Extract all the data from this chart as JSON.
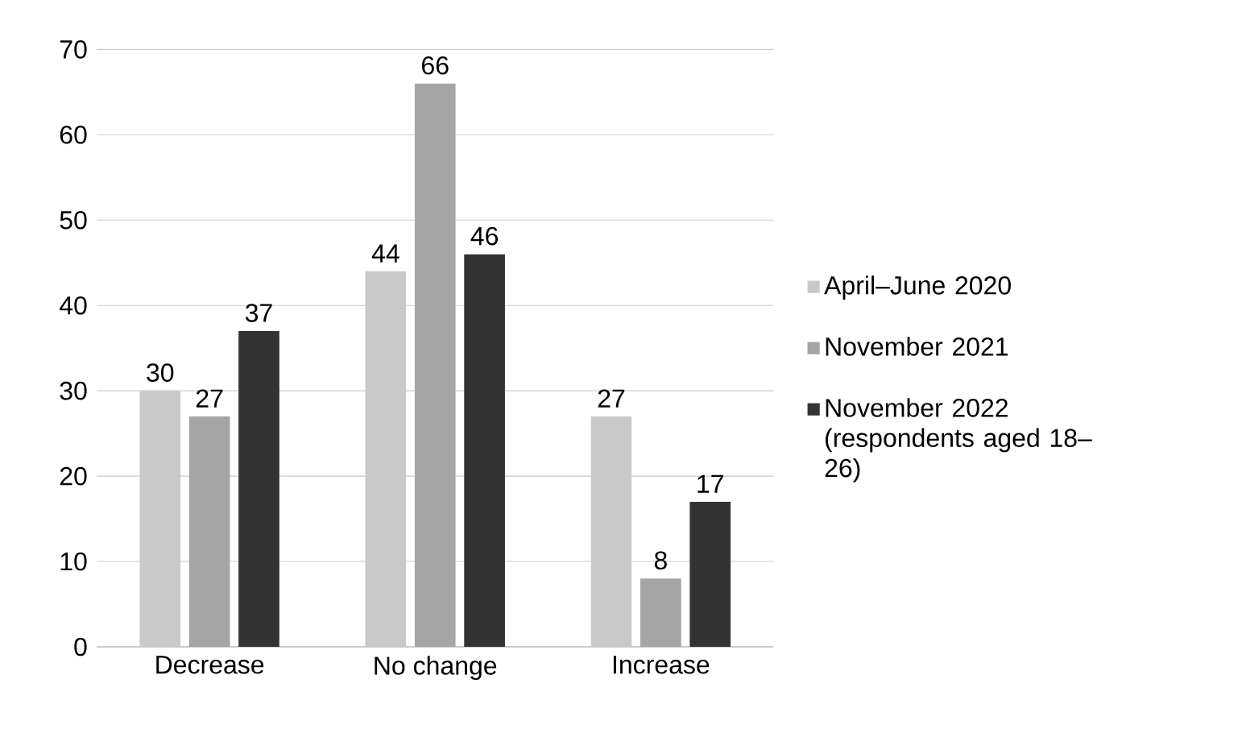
{
  "chart_data": {
    "type": "bar",
    "categories": [
      "Decrease",
      "No change",
      "Increase"
    ],
    "series": [
      {
        "name": "April–June 2020",
        "color": "#c9c9c9",
        "values": [
          30,
          44,
          27
        ]
      },
      {
        "name": "November 2021",
        "color": "#a5a5a5",
        "values": [
          27,
          66,
          8
        ]
      },
      {
        "name": "November 2022 (respondents aged 18–26)",
        "color": "#333333",
        "values": [
          37,
          46,
          17
        ]
      }
    ],
    "ylim": [
      0,
      70
    ],
    "yticks": [
      0,
      10,
      20,
      30,
      40,
      50,
      60,
      70
    ],
    "grid": "y",
    "legend": "right",
    "data_labels": true
  }
}
